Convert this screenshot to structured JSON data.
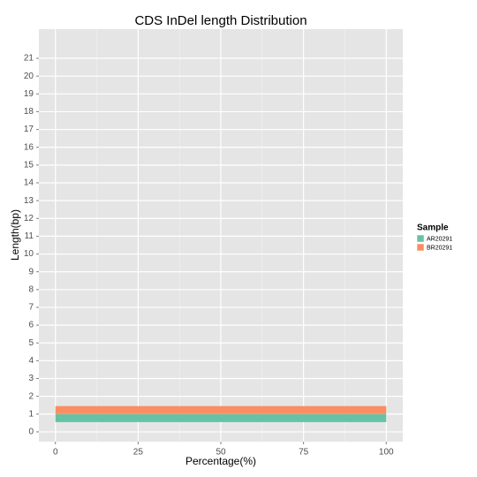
{
  "chart_data": {
    "type": "bar",
    "orientation": "horizontal",
    "title": "CDS InDel length Distribution",
    "x_label": "Percentage(%)",
    "y_label": "Length(bp)",
    "y": [
      1
    ],
    "series": [
      {
        "name": "AR20291",
        "color": "#66c2a5",
        "values": [
          100
        ]
      },
      {
        "name": "BR20291",
        "color": "#fc8d62",
        "values": [
          100
        ]
      }
    ],
    "xlim": [
      -5,
      105
    ],
    "xticks": [
      0,
      25,
      50,
      75,
      100
    ],
    "ylim": [
      -0.55,
      22.64
    ],
    "yticks": [
      0,
      1,
      2,
      3,
      4,
      5,
      6,
      7,
      8,
      9,
      10,
      11,
      12,
      13,
      14,
      15,
      16,
      17,
      18,
      19,
      20,
      21
    ],
    "grid": true,
    "legend_title": "Sample",
    "legend_position": "right"
  }
}
